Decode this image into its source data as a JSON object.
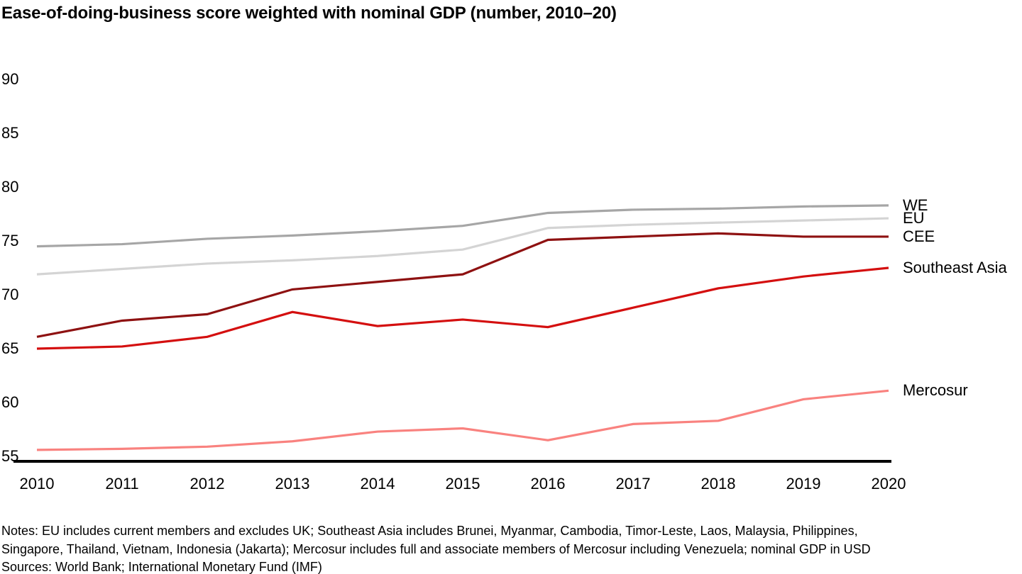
{
  "title": "Ease-of-doing-business score weighted with nominal GDP (number, 2010–20)",
  "chart_data": {
    "type": "line",
    "title": "Ease-of-doing-business score weighted with nominal GDP (number, 2010–20)",
    "xlabel": "",
    "ylabel": "",
    "x": [
      2010,
      2011,
      2012,
      2013,
      2014,
      2015,
      2016,
      2017,
      2018,
      2019,
      2020
    ],
    "x_labels": [
      "2010",
      "2011",
      "2012",
      "2013",
      "2014",
      "2015",
      "2016",
      "2017",
      "2018",
      "2019",
      "2020"
    ],
    "y_ticks": [
      90,
      85,
      80,
      75,
      70,
      65,
      60,
      55
    ],
    "ylim": [
      55,
      90
    ],
    "grid": false,
    "legend_position": "right-of-line-ends",
    "series": [
      {
        "name": "WE",
        "color": "#a6a6a6",
        "values": [
          74.5,
          74.7,
          75.2,
          75.5,
          75.9,
          76.4,
          77.6,
          77.9,
          78.0,
          78.2,
          78.3
        ]
      },
      {
        "name": "EU",
        "color": "#d4d4d4",
        "values": [
          71.9,
          72.4,
          72.9,
          73.2,
          73.6,
          74.2,
          76.2,
          76.5,
          76.7,
          76.9,
          77.1
        ]
      },
      {
        "name": "CEE",
        "color": "#8e1111",
        "values": [
          66.1,
          67.6,
          68.2,
          70.5,
          71.2,
          71.9,
          75.1,
          75.4,
          75.7,
          75.4,
          75.4
        ]
      },
      {
        "name": "Southeast Asia",
        "color": "#d40f0f",
        "values": [
          65.0,
          65.2,
          66.1,
          68.4,
          67.1,
          67.7,
          67.0,
          68.8,
          70.6,
          71.7,
          72.5
        ]
      },
      {
        "name": "Mercosur",
        "color": "#f9827f",
        "values": [
          55.6,
          55.7,
          55.9,
          56.4,
          57.3,
          57.6,
          56.5,
          58.0,
          58.3,
          60.3,
          61.1
        ]
      }
    ],
    "axis_color": "#000000"
  },
  "notes": {
    "line1": "Notes: EU includes current members and excludes UK; Southeast Asia includes Brunei, Myanmar, Cambodia, Timor-Leste, Laos, Malaysia, Philippines,",
    "line2": "Singapore, Thailand, Vietnam, Indonesia (Jakarta); Mercosur includes full and associate members of Mercosur including Venezuela; nominal GDP in USD",
    "sources": "Sources: World Bank; International Monetary Fund (IMF)"
  }
}
